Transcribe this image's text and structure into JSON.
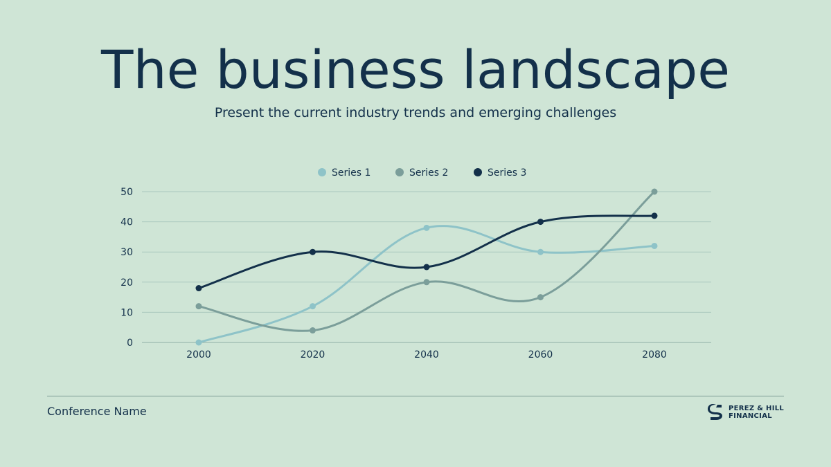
{
  "slide": {
    "title": "The business landscape",
    "subtitle": "Present the current industry trends and emerging challenges"
  },
  "footer": {
    "conference": "Conference Name",
    "brand_line1": "PEREZ & HILL",
    "brand_line2": "FINANCIAL"
  },
  "colors": {
    "background": "#cfe5d6",
    "text": "#13304a",
    "grid": "#a9c7bd"
  },
  "chart_data": {
    "type": "line",
    "title": "",
    "xlabel": "",
    "ylabel": "",
    "categories": [
      "2000",
      "2020",
      "2040",
      "2060",
      "2080"
    ],
    "ylim": [
      0,
      50
    ],
    "yticks": [
      0,
      10,
      20,
      30,
      40,
      50
    ],
    "grid": true,
    "smooth": true,
    "legend": "top-center",
    "series": [
      {
        "name": "Series 1",
        "color": "#8ec3c8",
        "values": [
          0,
          12,
          38,
          30,
          32
        ]
      },
      {
        "name": "Series 2",
        "color": "#7b9e9a",
        "values": [
          12,
          4,
          20,
          15,
          50
        ]
      },
      {
        "name": "Series 3",
        "color": "#13304a",
        "values": [
          18,
          30,
          25,
          40,
          42
        ]
      }
    ]
  }
}
